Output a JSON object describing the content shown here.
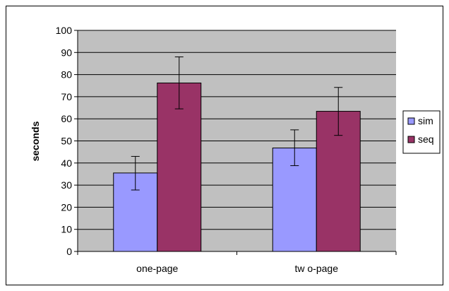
{
  "chart_data": {
    "type": "bar",
    "title": "",
    "xlabel": "",
    "ylabel": "seconds",
    "ylim": [
      0,
      100
    ],
    "yticks": [
      0,
      10,
      20,
      30,
      40,
      50,
      60,
      70,
      80,
      90,
      100
    ],
    "categories": [
      "one-page",
      "tw o-page"
    ],
    "series": [
      {
        "name": "sim",
        "color": "#9999ff",
        "values": [
          35.5,
          46.8
        ],
        "error_low": [
          27.8,
          38.8
        ],
        "error_high": [
          43.0,
          55.0
        ]
      },
      {
        "name": "seq",
        "color": "#993366",
        "values": [
          76.2,
          63.4
        ],
        "error_low": [
          64.5,
          52.5
        ],
        "error_high": [
          88.0,
          74.2
        ]
      }
    ],
    "grid": true,
    "plot_background": "#c0c0c0",
    "legend_position": "right"
  }
}
